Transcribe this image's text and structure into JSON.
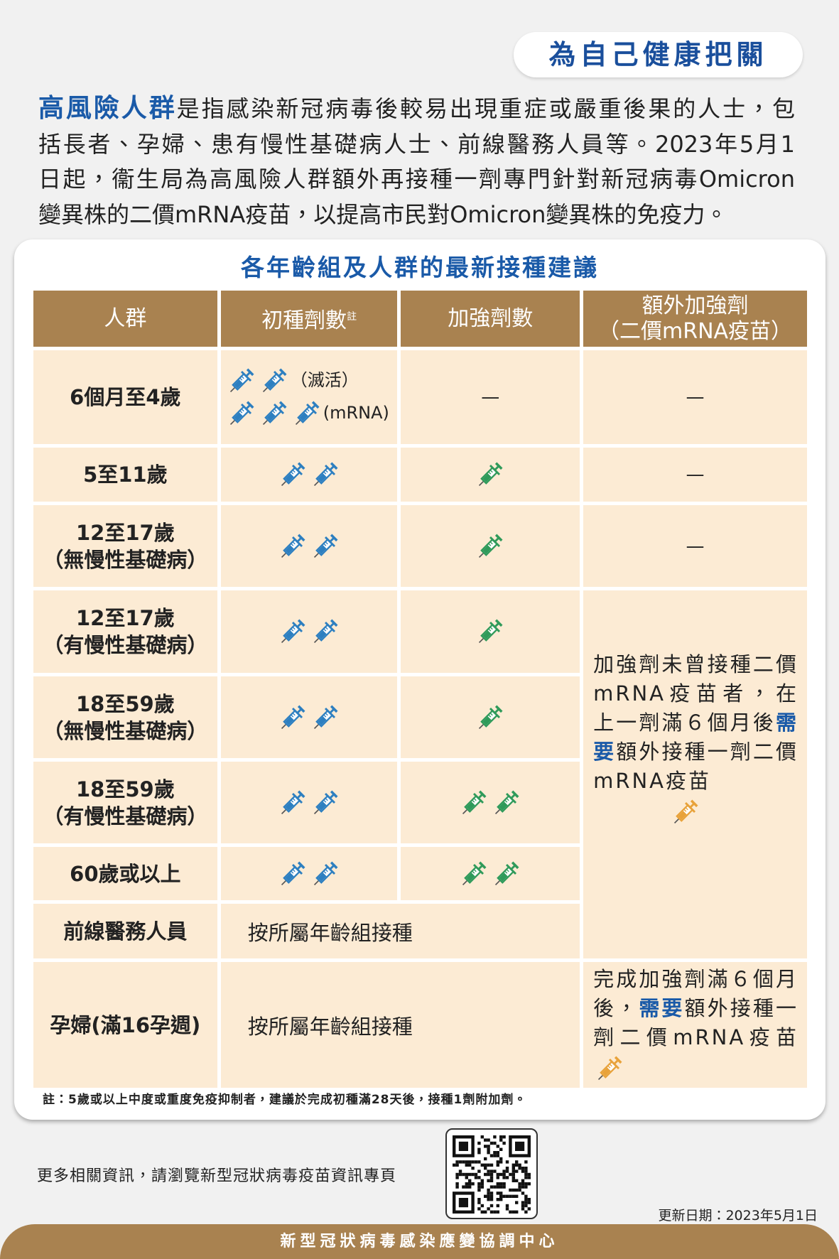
{
  "badge": "為自己健康把關",
  "intro": {
    "highlight": "高風險人群",
    "lines": [
      "是指感染新冠病毒後較易出現重症或嚴重後果的人士，包",
      "括長者、孕婦、患有慢性基礎病人士、前線醫務人員等。2023年5月1",
      "日起，衞生局為高風險人群額外再接種一劑專門針對新冠病毒Omicron",
      "變異株的二價mRNA疫苗，以提高市民對Omicron變異株的免疫力。"
    ]
  },
  "table": {
    "title": "各年齡組及人群的最新接種建議",
    "headers": {
      "group": "人群",
      "primary": "初種劑數",
      "primary_note": "註",
      "booster": "加強劑數",
      "extra_line1": "額外加強劑",
      "extra_line2": "（二價mRNA疫苗）"
    },
    "rows": [
      {
        "group": [
          "6個月至4歲"
        ],
        "primary_labels": [
          "（滅活）",
          "(mRNA)"
        ],
        "booster": "—",
        "extra": "—"
      },
      {
        "group": [
          "5至11歲"
        ],
        "extra": "—"
      },
      {
        "group": [
          "12至17歲",
          "（無慢性基礎病）"
        ],
        "extra": "—"
      },
      {
        "group": [
          "12至17歲",
          "（有慢性基礎病）"
        ]
      },
      {
        "group": [
          "18至59歲",
          "（無慢性基礎病）"
        ]
      },
      {
        "group": [
          "18至59歲",
          "（有慢性基礎病）"
        ]
      },
      {
        "group": [
          "60歲或以上"
        ]
      },
      {
        "group": [
          "前線醫務人員"
        ],
        "doses": "按所屬年齡組接種"
      },
      {
        "group": [
          "孕婦(滿16孕週)"
        ],
        "doses": "按所屬年齡組接種",
        "extra": {
          "before": "完成加強劑滿６個月後，",
          "highlight": "需要",
          "after": "額外接種一劑二價mRNA疫苗"
        }
      }
    ],
    "extra_merged": {
      "before": "加強劑未曾接種二價mRNA疫苗者，在上一劑滿６個月後",
      "highlight": "需要",
      "after": "額外接種一劑二價mRNA疫苗"
    },
    "note": "註：5歲或以上中度或重度免疫抑制者，建議於完成初種滿28天後，接種1劑附加劑。"
  },
  "more_info": "更多相關資訊，請瀏覽新型冠狀病毒疫苗資訊專頁",
  "updated": "更新日期：2023年5月1日",
  "footer": "新型冠狀病毒感染應變協調中心"
}
